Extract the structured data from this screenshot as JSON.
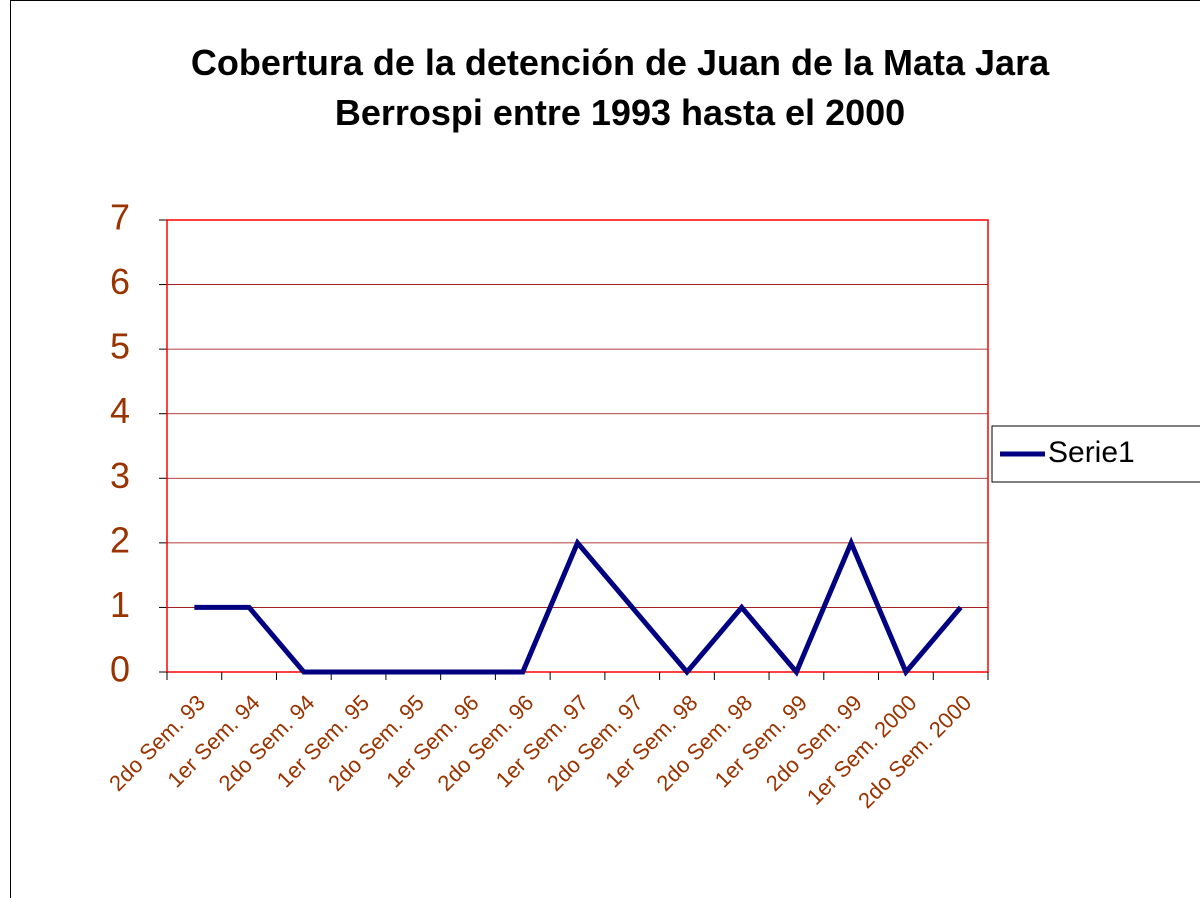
{
  "chart_data": {
    "type": "line",
    "title": "Cobertura de la detención de Juan de la Mata Jara Berrospi entre 1993 hasta el 2000",
    "categories": [
      "2do Sem. 93",
      "1er Sem. 94",
      "2do Sem. 94",
      "1er Sem. 95",
      "2do Sem. 95",
      "1er Sem. 96",
      "2do Sem. 96",
      "1er Sem. 97",
      "2do Sem. 97",
      "1er Sem. 98",
      "2do Sem. 98",
      "1er Sem. 99",
      "2do Sem. 99",
      "1er Sem. 2000",
      "2do Sem. 2000"
    ],
    "series": [
      {
        "name": "Serie1",
        "color": "#000080",
        "values": [
          1,
          1,
          0,
          0,
          0,
          0,
          0,
          2,
          1,
          0,
          1,
          0,
          2,
          0,
          1
        ]
      }
    ],
    "ylim": [
      0,
      7
    ],
    "yticks": [
      0,
      1,
      2,
      3,
      4,
      5,
      6,
      7
    ],
    "grid": true,
    "legend": "right"
  }
}
